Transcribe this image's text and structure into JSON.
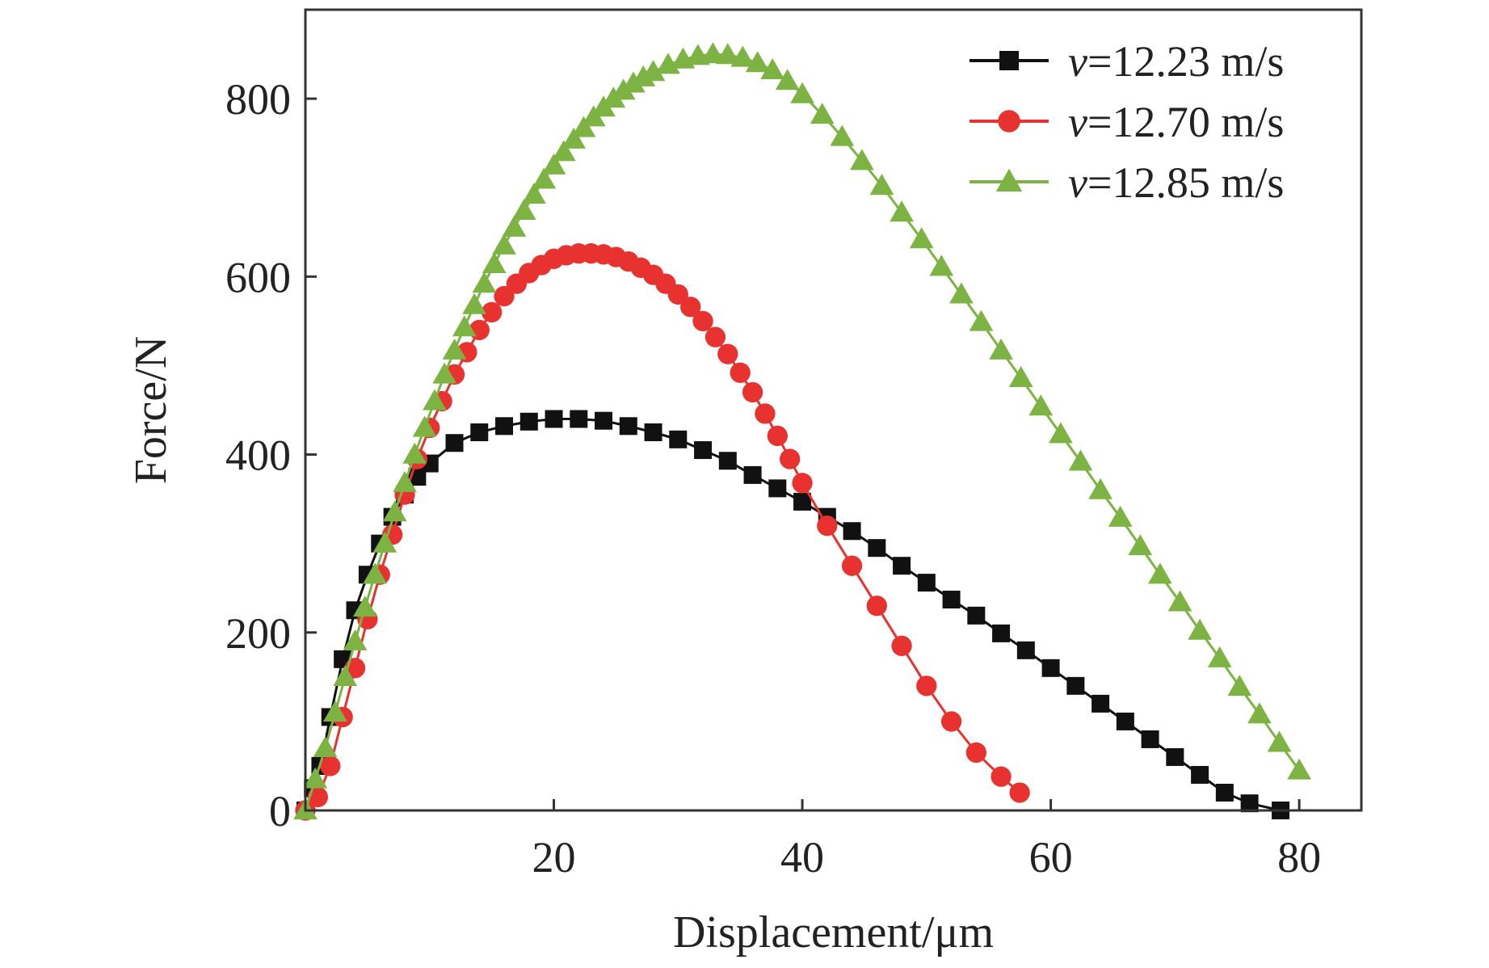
{
  "chart_data": {
    "type": "line",
    "title": "",
    "xlabel": "Displacement/μm",
    "ylabel": "Force/N",
    "xlim": [
      0,
      85
    ],
    "ylim": [
      0,
      900
    ],
    "x_ticks": [
      20,
      40,
      60,
      80
    ],
    "y_ticks": [
      0,
      200,
      400,
      600,
      800
    ],
    "x_tick_labels": [
      "20",
      "40",
      "60",
      "80"
    ],
    "y_tick_labels": [
      "0",
      "200",
      "400",
      "600",
      "800"
    ],
    "grid": false,
    "legend_position": "top-right",
    "series": [
      {
        "name": "v=12.23 m/s",
        "legend_symbol": "v",
        "legend_value": "=12.23 m/s",
        "marker": "square",
        "color": "#111111",
        "x": [
          0,
          0.6,
          1.2,
          2,
          3,
          4,
          5,
          6,
          7,
          8,
          9,
          10,
          12,
          14,
          16,
          18,
          20,
          22,
          24,
          26,
          28,
          30,
          32,
          34,
          36,
          38,
          40,
          42,
          44,
          46,
          48,
          50,
          52,
          54,
          56,
          58,
          60,
          62,
          64,
          66,
          68,
          70,
          72,
          74,
          76,
          78.5
        ],
        "y": [
          0,
          25,
          50,
          105,
          170,
          225,
          265,
          300,
          330,
          355,
          375,
          390,
          413,
          425,
          432,
          437,
          440,
          440,
          438,
          432,
          425,
          417,
          405,
          393,
          377,
          362,
          347,
          330,
          314,
          295,
          275,
          256,
          237,
          219,
          199,
          180,
          160,
          140,
          120,
          100,
          80,
          60,
          40,
          20,
          8,
          0
        ]
      },
      {
        "name": "v=12.70 m/s",
        "legend_symbol": "v",
        "legend_value": "=12.70 m/s",
        "marker": "circle",
        "color": "#e8322f",
        "x": [
          0,
          1,
          2,
          3,
          4,
          5,
          6,
          7,
          8,
          9,
          10,
          11,
          12,
          13,
          14,
          15,
          16,
          17,
          18,
          19,
          20,
          21,
          22,
          23,
          24,
          25,
          26,
          27,
          28,
          29,
          30,
          31,
          32,
          33,
          34,
          35,
          36,
          37,
          38,
          39,
          40,
          42,
          44,
          46,
          48,
          50,
          52,
          54,
          56,
          57.5
        ],
        "y": [
          0,
          15,
          50,
          105,
          160,
          215,
          265,
          310,
          355,
          395,
          430,
          460,
          490,
          515,
          540,
          560,
          578,
          592,
          604,
          613,
          620,
          624,
          626,
          626,
          625,
          622,
          617,
          610,
          602,
          592,
          580,
          566,
          550,
          532,
          513,
          492,
          470,
          446,
          421,
          395,
          368,
          320,
          275,
          230,
          185,
          140,
          100,
          65,
          38,
          20
        ]
      },
      {
        "name": "v=12.85 m/s",
        "legend_symbol": "v",
        "legend_value": "=12.85 m/s",
        "marker": "triangle",
        "color": "#7cb342",
        "x": [
          0,
          0.8,
          1.6,
          2.4,
          3.2,
          4,
          4.8,
          5.6,
          6.4,
          7.2,
          8,
          8.8,
          9.6,
          10.4,
          11.2,
          12,
          12.8,
          13.6,
          14.4,
          15.2,
          16,
          16.8,
          17.6,
          18.4,
          19.2,
          20,
          20.8,
          21.6,
          22.4,
          23.2,
          24,
          24.8,
          25.6,
          26.4,
          27.2,
          28,
          29.2,
          30.4,
          31.6,
          32.8,
          34,
          35.2,
          36.4,
          37.6,
          38.8,
          40,
          41.6,
          43.2,
          44.8,
          46.4,
          48,
          49.6,
          51.2,
          52.8,
          54.4,
          56,
          57.6,
          59.2,
          60.8,
          62.4,
          64,
          65.6,
          67.2,
          68.8,
          70.4,
          72,
          73.6,
          75.2,
          76.8,
          78.4,
          80
        ],
        "y": [
          0,
          35,
          70,
          110,
          150,
          190,
          228,
          265,
          300,
          335,
          368,
          400,
          430,
          460,
          490,
          517,
          543,
          568,
          592,
          614,
          635,
          655,
          674,
          692,
          709,
          725,
          740,
          754,
          767,
          779,
          790,
          800,
          809,
          817,
          824,
          830,
          838,
          844,
          848,
          850,
          849,
          846,
          840,
          832,
          820,
          805,
          782,
          757,
          730,
          702,
          672,
          642,
          611,
          580,
          549,
          517,
          486,
          454,
          423,
          392,
          360,
          329,
          297,
          265,
          234,
          202,
          171,
          139,
          108,
          76,
          45
        ]
      }
    ]
  }
}
